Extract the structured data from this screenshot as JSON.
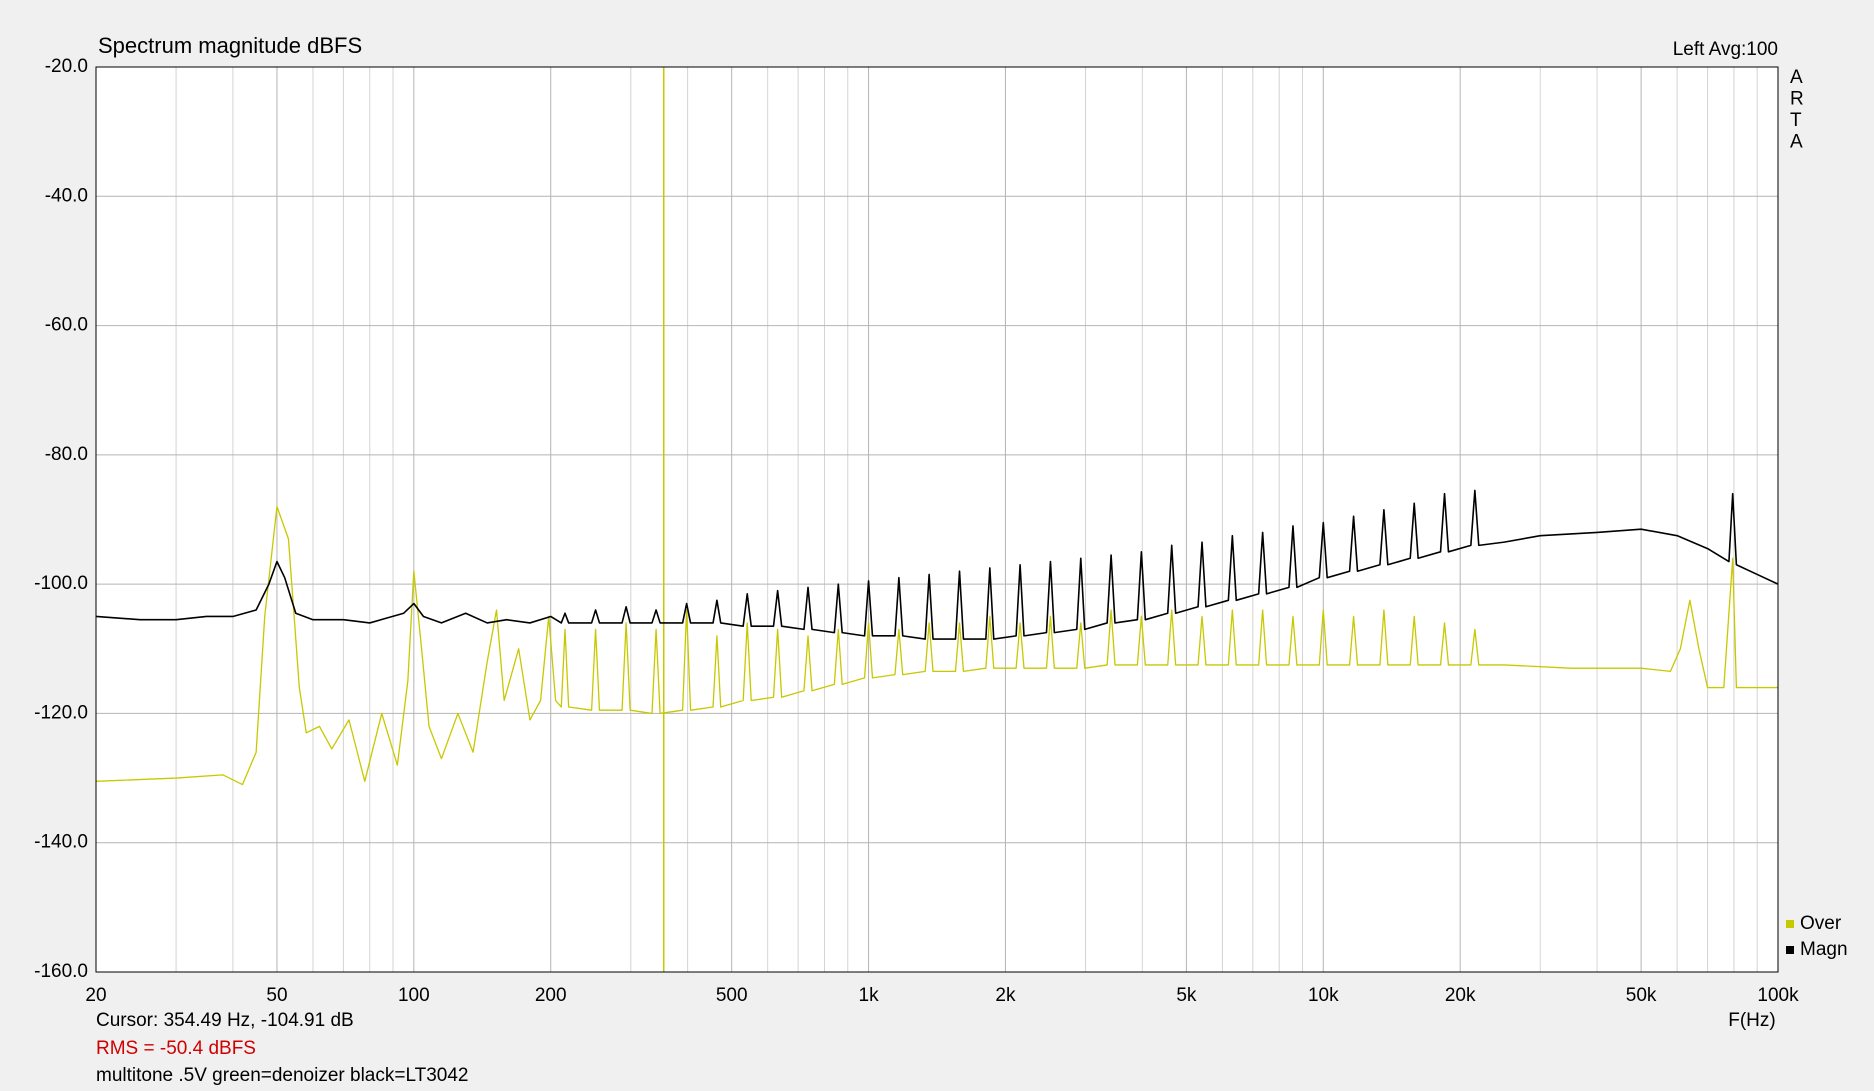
{
  "chart_data": {
    "type": "line",
    "title": "Spectrum magnitude dBFS",
    "header_right": "Left  Avg:100",
    "side_label": [
      "A",
      "R",
      "T",
      "A"
    ],
    "x_label": "F(Hz)",
    "cursor_label": "Cursor: 354.49 Hz, -104.91 dB",
    "cursor_x": 354.49,
    "cursor_color": "#c8c800",
    "rms_label": "RMS =  -50.4 dBFS",
    "note": "multitone .5V green=denoizer black=LT3042",
    "xscale": "log",
    "grid": true,
    "legend": "lower right",
    "xlim": [
      20,
      100000
    ],
    "ylim": [
      -160,
      -20
    ],
    "xticks": [
      20,
      50,
      100,
      200,
      500,
      {
        "value": 1000,
        "label": "1k"
      },
      {
        "value": 2000,
        "label": "2k"
      },
      {
        "value": 5000,
        "label": "5k"
      },
      {
        "value": 10000,
        "label": "10k"
      },
      {
        "value": 20000,
        "label": "20k"
      },
      {
        "value": 50000,
        "label": "50k"
      },
      {
        "value": 100000,
        "label": "100k"
      }
    ],
    "x_minor_ticks": [
      30,
      40,
      60,
      70,
      80,
      90,
      300,
      400,
      600,
      700,
      800,
      900,
      3000,
      4000,
      6000,
      7000,
      8000,
      9000,
      30000,
      40000,
      60000,
      70000,
      80000,
      90000
    ],
    "yticks": [
      {
        "value": -20,
        "label": "-20.0"
      },
      {
        "value": -40,
        "label": "-40.0"
      },
      {
        "value": -60,
        "label": "-60.0"
      },
      {
        "value": -80,
        "label": "-80.0"
      },
      {
        "value": -100,
        "label": "-100.0"
      },
      {
        "value": -120,
        "label": "-120.0"
      },
      {
        "value": -140,
        "label": "-140.0"
      },
      {
        "value": -160,
        "label": "-160.0"
      }
    ],
    "series": [
      {
        "name": "Over",
        "color": "#c8c800",
        "x": [
          20,
          30,
          38,
          42,
          45,
          47,
          50,
          53,
          56,
          58,
          62,
          66,
          72,
          78,
          85,
          92,
          97,
          100,
          104,
          108,
          115,
          125,
          135,
          145,
          152,
          158,
          170,
          180,
          190,
          198,
          205,
          211,
          215,
          219,
          246,
          251,
          256,
          287,
          293,
          299,
          334,
          341,
          348,
          390,
          398,
          406,
          455,
          464,
          473,
          530,
          541,
          552,
          618,
          631,
          644,
          721,
          736,
          751,
          841,
          858,
          875,
          980,
          1000,
          1020,
          1143,
          1166,
          1189,
          1332,
          1359,
          1386,
          1553,
          1585,
          1617,
          1811,
          1848,
          1885,
          2111,
          2154,
          2197,
          2462,
          2512,
          2562,
          2870,
          2929,
          2988,
          3347,
          3415,
          3483,
          3901,
          3981,
          4061,
          4549,
          4642,
          4735,
          5304,
          5412,
          5520,
          6184,
          6310,
          6436,
          7209,
          7356,
          7503,
          8405,
          8577,
          8749,
          9800,
          10000,
          10200,
          11426,
          11659,
          11892,
          13322,
          13594,
          13866,
          15532,
          15849,
          16166,
          18108,
          18478,
          18848,
          21113,
          21544,
          21975,
          25000,
          35000,
          50000,
          58000,
          61000,
          64000,
          67000,
          70000,
          76000,
          79500,
          81000,
          90000,
          100000
        ],
        "values": [
          -130.5,
          -130,
          -129.5,
          -131,
          -126,
          -105,
          -88,
          -93,
          -116,
          -123,
          -122,
          -125.5,
          -121,
          -130.5,
          -120,
          -128,
          -115,
          -98,
          -110,
          -122,
          -127,
          -120,
          -126,
          -112,
          -104,
          -118,
          -110,
          -121,
          -118,
          -105,
          -118,
          -119,
          -107,
          -119,
          -119.5,
          -107,
          -119.5,
          -119.5,
          -106,
          -119.5,
          -120,
          -107,
          -120,
          -119.5,
          -104,
          -119.5,
          -119,
          -108,
          -119,
          -118,
          -106,
          -118,
          -117.5,
          -107,
          -117.5,
          -116.5,
          -108,
          -116.5,
          -115.5,
          -107,
          -115.5,
          -114.5,
          -106,
          -114.5,
          -114,
          -107,
          -114,
          -113.5,
          -106,
          -113.5,
          -113.5,
          -106,
          -113.5,
          -113,
          -105,
          -113,
          -113,
          -106,
          -113,
          -113,
          -105,
          -113,
          -113,
          -106,
          -113,
          -112.5,
          -104,
          -112.5,
          -112.5,
          -105,
          -112.5,
          -112.5,
          -104,
          -112.5,
          -112.5,
          -105,
          -112.5,
          -112.5,
          -104,
          -112.5,
          -112.5,
          -104,
          -112.5,
          -112.5,
          -105,
          -112.5,
          -112.5,
          -104,
          -112.5,
          -112.5,
          -105,
          -112.5,
          -112.5,
          -104,
          -112.5,
          -112.5,
          -105,
          -112.5,
          -112.5,
          -106,
          -112.5,
          -112.5,
          -107,
          -112.5,
          -112.5,
          -113,
          -113,
          -113.5,
          -110,
          -102.5,
          -110,
          -116,
          -116,
          -96,
          -116,
          -116,
          -116
        ]
      },
      {
        "name": "Magn",
        "color": "#000000",
        "x": [
          20,
          25,
          30,
          35,
          40,
          45,
          48,
          50,
          52,
          55,
          60,
          70,
          80,
          95,
          100,
          105,
          115,
          130,
          145,
          160,
          180,
          200,
          211,
          215,
          219,
          246,
          251,
          256,
          287,
          293,
          299,
          334,
          341,
          348,
          390,
          398,
          406,
          455,
          464,
          473,
          530,
          541,
          552,
          618,
          631,
          644,
          721,
          736,
          751,
          841,
          858,
          875,
          980,
          1000,
          1020,
          1143,
          1166,
          1189,
          1332,
          1359,
          1386,
          1553,
          1585,
          1617,
          1811,
          1848,
          1885,
          2111,
          2154,
          2197,
          2462,
          2512,
          2562,
          2870,
          2929,
          2988,
          3347,
          3415,
          3483,
          3901,
          3981,
          4061,
          4549,
          4642,
          4735,
          5304,
          5412,
          5520,
          6184,
          6310,
          6436,
          7209,
          7356,
          7503,
          8405,
          8577,
          8749,
          9800,
          10000,
          10200,
          11426,
          11659,
          11892,
          13322,
          13594,
          13866,
          15532,
          15849,
          16166,
          18108,
          18478,
          18848,
          21113,
          21544,
          21975,
          25000,
          30000,
          40000,
          50000,
          60000,
          70000,
          78000,
          79500,
          81000,
          90000,
          100000
        ],
        "values": [
          -105,
          -105.5,
          -105.5,
          -105,
          -105,
          -104,
          -100,
          -96.5,
          -99,
          -104.5,
          -105.5,
          -105.5,
          -106,
          -104.5,
          -103,
          -105,
          -106,
          -104.5,
          -106,
          -105.5,
          -106,
          -105,
          -106,
          -104.5,
          -106,
          -106,
          -104,
          -106,
          -106,
          -103.5,
          -106,
          -106,
          -104,
          -106,
          -106,
          -103,
          -106,
          -106,
          -102.5,
          -106,
          -106.5,
          -101.5,
          -106.5,
          -106.5,
          -101,
          -106.5,
          -107,
          -100.5,
          -107,
          -107.5,
          -100,
          -107.5,
          -108,
          -99.5,
          -108,
          -108,
          -99,
          -108,
          -108.5,
          -98.5,
          -108.5,
          -108.5,
          -98,
          -108.5,
          -108.5,
          -97.5,
          -108.5,
          -108,
          -97,
          -108,
          -107.5,
          -96.5,
          -107.5,
          -107,
          -96,
          -107,
          -106,
          -95.5,
          -106,
          -105.5,
          -95,
          -105.5,
          -104.5,
          -94,
          -104.5,
          -103.5,
          -93.5,
          -103.5,
          -102.5,
          -92.5,
          -102.5,
          -101.5,
          -92,
          -101.5,
          -100.5,
          -91,
          -100.5,
          -99,
          -90.5,
          -99,
          -98,
          -89.5,
          -98,
          -97,
          -88.5,
          -97,
          -96,
          -87.5,
          -96,
          -95,
          -86,
          -95,
          -94,
          -85.5,
          -94,
          -93.5,
          -92.5,
          -92,
          -91.5,
          -92.5,
          -94.5,
          -96.5,
          -86,
          -97,
          -98.5,
          -100
        ]
      }
    ]
  }
}
